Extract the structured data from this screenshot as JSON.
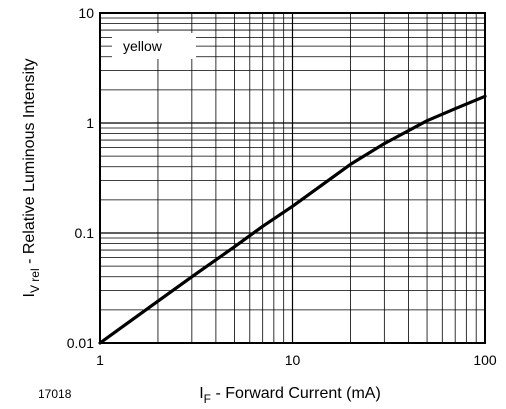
{
  "chart_data": {
    "type": "line",
    "xscale": "log",
    "yscale": "log",
    "xlim": [
      1,
      100
    ],
    "ylim": [
      0.01,
      10
    ],
    "x_ticks": [
      "1",
      "10",
      "100"
    ],
    "y_ticks": [
      "10",
      "1",
      "0.1",
      "0.01"
    ],
    "xlabel": {
      "symbol": "I",
      "subscript": "F",
      "text": " - Forward Current (mA)"
    },
    "ylabel": {
      "symbol": "I",
      "subscript": "V rel",
      "text": " - Relative Luminous Intensity"
    },
    "grid": true,
    "series": [
      {
        "name": "yellow",
        "color": "#000000",
        "x": [
          1,
          2,
          3,
          5,
          7,
          10,
          20,
          30,
          50,
          70,
          100
        ],
        "y": [
          0.01,
          0.024,
          0.04,
          0.075,
          0.115,
          0.175,
          0.42,
          0.65,
          1.05,
          1.35,
          1.75
        ]
      }
    ],
    "figure_code": "17018"
  }
}
